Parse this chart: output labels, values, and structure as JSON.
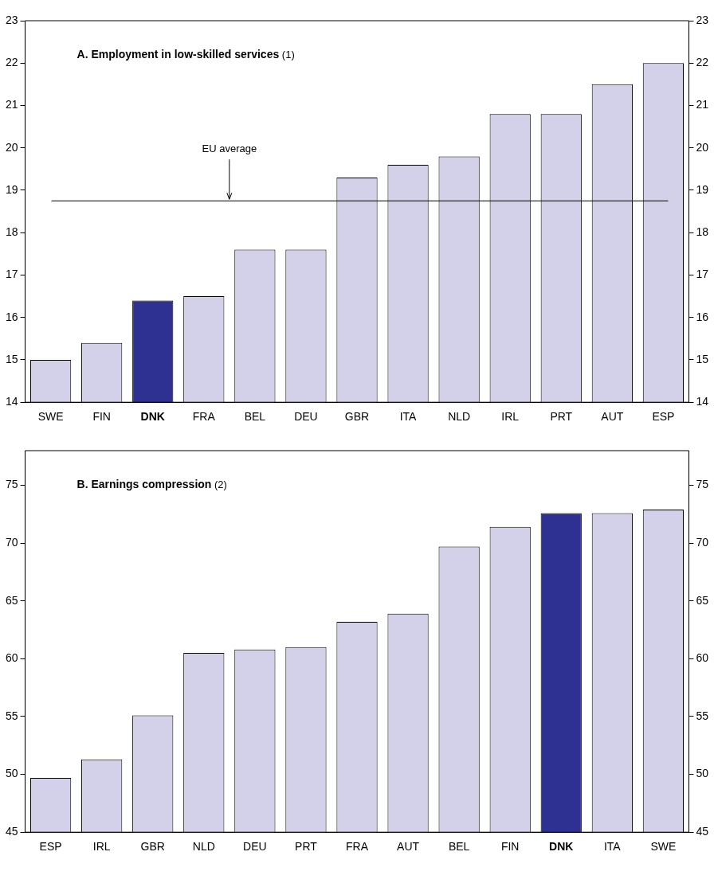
{
  "chart_data": [
    {
      "type": "bar",
      "title": "A. Employment in low-skilled services (1)",
      "categories": [
        "SWE",
        "FIN",
        "DNK",
        "FRA",
        "BEL",
        "DEU",
        "GBR",
        "ITA",
        "NLD",
        "IRL",
        "PRT",
        "AUT",
        "ESP"
      ],
      "values": [
        15.0,
        15.4,
        16.4,
        16.5,
        17.6,
        17.6,
        19.3,
        19.6,
        19.8,
        20.8,
        20.8,
        21.5,
        22.0
      ],
      "colors": [
        "#d3d1ea",
        "#d3d1ea",
        "#2e3192",
        "#d3d1ea",
        "#d3d1ea",
        "#d3d1ea",
        "#d3d1ea",
        "#d3d1ea",
        "#d3d1ea",
        "#d3d1ea",
        "#d3d1ea",
        "#d3d1ea",
        "#d3d1ea"
      ],
      "ylim": [
        14,
        23
      ],
      "yticks": [
        14,
        15,
        16,
        17,
        18,
        19,
        20,
        21,
        22,
        23
      ],
      "y2lim": [
        14,
        23
      ],
      "y2ticks": [
        14,
        15,
        16,
        17,
        18,
        19,
        20,
        21,
        22,
        23
      ],
      "ref_lines": [
        {
          "axis": "y",
          "value": 18.75,
          "label": "EU average",
          "color": "#000000"
        }
      ],
      "grid": false,
      "legend": false
    },
    {
      "type": "bar",
      "title": "B. Earnings compression (2)",
      "categories": [
        "ESP",
        "IRL",
        "GBR",
        "NLD",
        "DEU",
        "PRT",
        "FRA",
        "AUT",
        "BEL",
        "FIN",
        "DNK",
        "ITA",
        "SWE"
      ],
      "values": [
        49.7,
        51.3,
        55.1,
        60.5,
        60.8,
        61.0,
        63.2,
        63.9,
        69.7,
        71.4,
        72.6,
        72.6,
        72.9
      ],
      "colors": [
        "#d3d1ea",
        "#d3d1ea",
        "#d3d1ea",
        "#d3d1ea",
        "#d3d1ea",
        "#d3d1ea",
        "#d3d1ea",
        "#d3d1ea",
        "#d3d1ea",
        "#d3d1ea",
        "#2e3192",
        "#d3d1ea",
        "#d3d1ea"
      ],
      "ylim": [
        45,
        78
      ],
      "yticks": [
        45,
        50,
        55,
        60,
        65,
        70,
        75
      ],
      "y2lim": [
        45,
        78
      ],
      "y2ticks": [
        45,
        50,
        55,
        60,
        65,
        70,
        75
      ],
      "grid": false,
      "legend": false
    }
  ]
}
